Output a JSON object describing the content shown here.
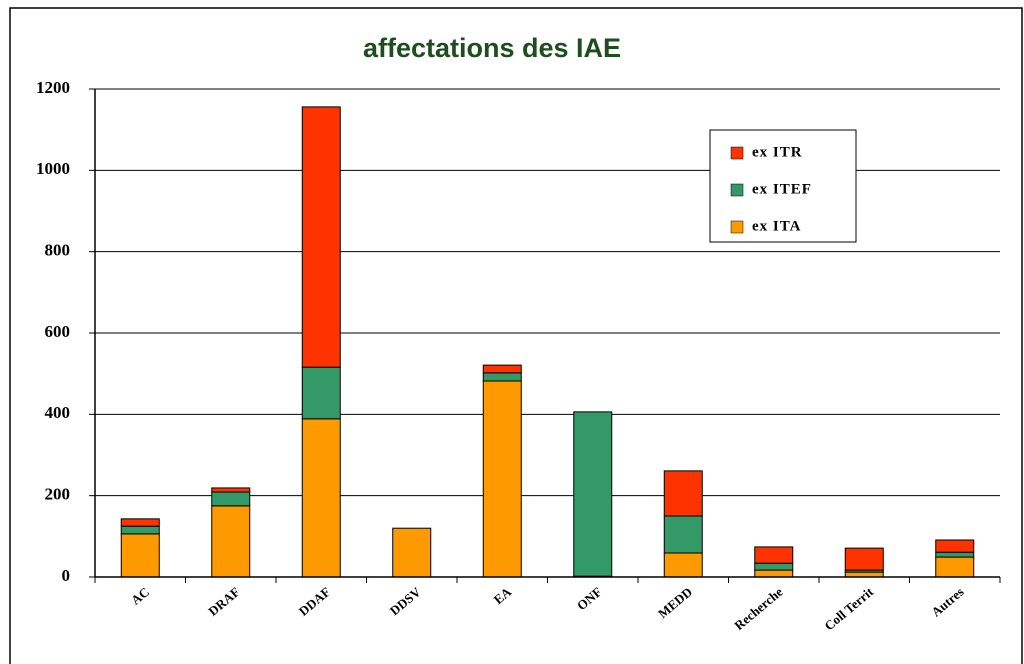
{
  "chart_data": {
    "type": "stacked_bar",
    "title": "affectations des IAE",
    "categories": [
      "AC",
      "DRAF",
      "DDAF",
      "DDSV",
      "EA",
      "ONF",
      "MEDD",
      "Recherche",
      "Coll Territ",
      "Autres"
    ],
    "series": [
      {
        "name": "ex ITA",
        "color": "#ff9900",
        "values": [
          106,
          175,
          389,
          120,
          482,
          2,
          59,
          17,
          12,
          49
        ]
      },
      {
        "name": "ex ITEF",
        "color": "#339966",
        "values": [
          19,
          34,
          127,
          0,
          20,
          404,
          91,
          17,
          5,
          12
        ]
      },
      {
        "name": "ex ITR",
        "color": "#ff3300",
        "values": [
          18,
          10,
          640,
          0,
          19,
          0,
          111,
          40,
          54,
          30
        ]
      }
    ],
    "ylim": [
      0,
      1200
    ],
    "yticks": [
      0,
      200,
      400,
      600,
      800,
      1000,
      1200
    ],
    "grid": true
  }
}
